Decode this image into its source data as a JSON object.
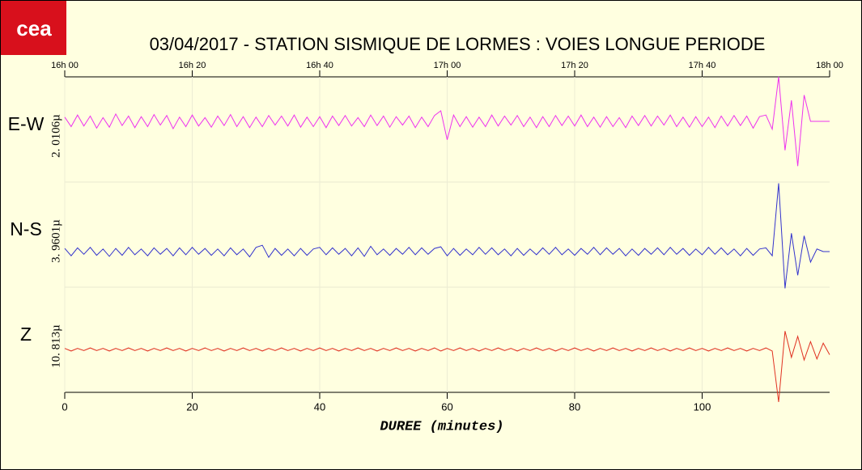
{
  "chart_data": {
    "type": "line",
    "logo": "cea",
    "title": "03/04/2017  -  STATION SISMIQUE DE LORMES : VOIES LONGUE PERIODE",
    "xlabel": "DUREE (minutes)",
    "xlim": [
      0,
      120
    ],
    "xticks": [
      0,
      20,
      40,
      60,
      80,
      100
    ],
    "top_xticks": [
      {
        "value": 0,
        "label": "16h 00"
      },
      {
        "value": 20,
        "label": "16h 20"
      },
      {
        "value": 40,
        "label": "16h 40"
      },
      {
        "value": 60,
        "label": "17h 00"
      },
      {
        "value": 80,
        "label": "17h 20"
      },
      {
        "value": 100,
        "label": "17h 40"
      },
      {
        "value": 120,
        "label": "18h 00"
      }
    ],
    "grid": true,
    "x": [
      0,
      1,
      2,
      3,
      4,
      5,
      6,
      7,
      8,
      9,
      10,
      11,
      12,
      13,
      14,
      15,
      16,
      17,
      18,
      19,
      20,
      21,
      22,
      23,
      24,
      25,
      26,
      27,
      28,
      29,
      30,
      31,
      32,
      33,
      34,
      35,
      36,
      37,
      38,
      39,
      40,
      41,
      42,
      43,
      44,
      45,
      46,
      47,
      48,
      49,
      50,
      51,
      52,
      53,
      54,
      55,
      56,
      57,
      58,
      59,
      60,
      61,
      62,
      63,
      64,
      65,
      66,
      67,
      68,
      69,
      70,
      71,
      72,
      73,
      74,
      75,
      76,
      77,
      78,
      79,
      80,
      81,
      82,
      83,
      84,
      85,
      86,
      87,
      88,
      89,
      90,
      91,
      92,
      93,
      94,
      95,
      96,
      97,
      98,
      99,
      100,
      101,
      102,
      103,
      104,
      105,
      106,
      107,
      108,
      109,
      110,
      111,
      112,
      113,
      114,
      115,
      116,
      117,
      118,
      119,
      120
    ],
    "series": [
      {
        "name": "E-W",
        "scale_label": "2. 0106µ",
        "color": "#ee33ee",
        "values": [
          0.08,
          -0.1,
          0.12,
          -0.09,
          0.1,
          -0.13,
          0.07,
          -0.11,
          0.14,
          -0.08,
          0.1,
          -0.12,
          0.09,
          -0.1,
          0.13,
          -0.07,
          0.11,
          -0.14,
          0.08,
          -0.1,
          0.12,
          -0.09,
          0.07,
          -0.11,
          0.1,
          -0.08,
          0.13,
          -0.1,
          0.09,
          -0.12,
          0.08,
          -0.1,
          0.11,
          -0.07,
          0.1,
          -0.09,
          0.12,
          -0.11,
          0.08,
          -0.1,
          0.09,
          -0.12,
          0.1,
          -0.08,
          0.11,
          -0.09,
          0.07,
          -0.1,
          0.12,
          -0.08,
          0.1,
          -0.11,
          0.09,
          -0.07,
          0.1,
          -0.12,
          0.08,
          -0.1,
          0.11,
          0.2,
          -0.35,
          0.12,
          -0.1,
          0.09,
          -0.11,
          0.08,
          -0.1,
          0.12,
          -0.09,
          0.1,
          -0.07,
          0.11,
          -0.1,
          0.08,
          -0.12,
          0.09,
          -0.1,
          0.11,
          -0.08,
          0.1,
          -0.09,
          0.12,
          -0.1,
          0.08,
          -0.11,
          0.09,
          -0.1,
          0.07,
          -0.12,
          0.1,
          -0.08,
          0.11,
          -0.09,
          0.1,
          -0.07,
          0.12,
          -0.1,
          0.08,
          -0.11,
          0.09,
          -0.1,
          0.08,
          -0.12,
          0.1,
          -0.09,
          0.11,
          -0.08,
          0.1,
          -0.13,
          0.09,
          0.12,
          -0.15,
          0.85,
          -0.55,
          0.4,
          -0.85,
          0.5,
          0,
          0,
          0,
          0
        ]
      },
      {
        "name": "N-S",
        "scale_label": "3. 9601µ",
        "color": "#3333cc",
        "values": [
          0.06,
          -0.08,
          0.07,
          -0.05,
          0.08,
          -0.07,
          0.05,
          -0.09,
          0.06,
          -0.07,
          0.08,
          -0.06,
          0.05,
          -0.08,
          0.07,
          -0.05,
          0.06,
          -0.08,
          0.07,
          -0.06,
          0.08,
          -0.05,
          0.06,
          -0.07,
          0.05,
          -0.08,
          0.07,
          -0.06,
          0.05,
          -0.1,
          0.08,
          0.12,
          -0.11,
          0.06,
          -0.07,
          0.05,
          -0.08,
          0.06,
          -0.07,
          0.05,
          0.08,
          -0.06,
          0.07,
          -0.05,
          0.06,
          -0.08,
          0.07,
          -0.09,
          0.1,
          -0.06,
          0.05,
          -0.07,
          0.06,
          -0.05,
          0.08,
          -0.06,
          0.07,
          -0.05,
          0.06,
          0.09,
          -0.08,
          0.06,
          -0.07,
          0.05,
          -0.06,
          0.08,
          -0.05,
          0.07,
          -0.06,
          0.05,
          -0.08,
          0.06,
          -0.07,
          0.05,
          -0.06,
          0.07,
          -0.05,
          0.08,
          -0.06,
          0.05,
          -0.07,
          0.06,
          -0.05,
          0.08,
          -0.06,
          0.07,
          -0.05,
          0.06,
          -0.08,
          0.05,
          -0.07,
          0.06,
          -0.05,
          0.07,
          -0.06,
          0.08,
          -0.05,
          0.06,
          -0.07,
          0.05,
          -0.06,
          0.08,
          -0.05,
          0.07,
          -0.06,
          0.05,
          -0.08,
          0.06,
          -0.07,
          0.05,
          0.07,
          -0.08,
          1.3,
          -0.7,
          0.35,
          -0.45,
          0.3,
          -0.2,
          0.05,
          0,
          0
        ]
      },
      {
        "name": "Z",
        "scale_label": "10. 813µ",
        "color": "#e03020",
        "values": [
          0.02,
          -0.03,
          0.02,
          -0.02,
          0.03,
          -0.02,
          0.02,
          -0.03,
          0.02,
          -0.02,
          0.03,
          -0.02,
          0.02,
          -0.03,
          0.02,
          -0.02,
          0.03,
          -0.02,
          0.02,
          -0.03,
          0.02,
          -0.02,
          0.03,
          -0.02,
          0.02,
          -0.03,
          0.02,
          -0.02,
          0.03,
          -0.02,
          0.02,
          -0.03,
          0.02,
          -0.02,
          0.03,
          -0.02,
          0.02,
          -0.03,
          0.02,
          -0.02,
          0.03,
          -0.02,
          0.02,
          -0.03,
          0.02,
          -0.02,
          0.03,
          -0.02,
          0.02,
          -0.03,
          0.02,
          -0.02,
          0.03,
          -0.02,
          0.02,
          -0.03,
          0.02,
          -0.02,
          0.03,
          -0.03,
          0.02,
          -0.02,
          0.03,
          -0.02,
          0.02,
          -0.03,
          0.02,
          -0.02,
          0.03,
          -0.02,
          0.02,
          -0.03,
          0.02,
          -0.02,
          0.03,
          -0.02,
          0.02,
          -0.03,
          0.02,
          -0.02,
          0.03,
          -0.02,
          0.02,
          -0.03,
          0.02,
          -0.02,
          0.03,
          -0.02,
          0.02,
          -0.03,
          0.02,
          -0.02,
          0.03,
          -0.02,
          0.02,
          -0.03,
          0.02,
          -0.02,
          0.03,
          -0.02,
          0.02,
          -0.03,
          0.02,
          -0.02,
          0.03,
          -0.02,
          0.02,
          -0.03,
          0.02,
          -0.02,
          0.03,
          -0.03,
          -1.0,
          0.35,
          -0.15,
          0.25,
          -0.2,
          0.15,
          -0.18,
          0.12,
          -0.1
        ]
      }
    ]
  }
}
